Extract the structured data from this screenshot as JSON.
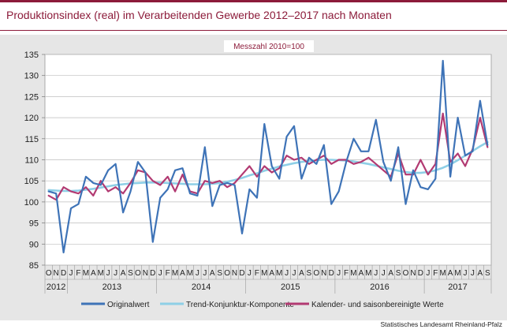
{
  "page": {
    "title": "Produktionsindex (real) im Verarbeitenden Gewerbe 2012–2017 nach Monaten",
    "source": "Statistisches Landesamt Rheinland-Pfalz"
  },
  "colors": {
    "brand": "#8c1b3a",
    "original": "#3e73b7",
    "trend": "#8ecfe6",
    "adjusted": "#b23a72",
    "panel": "#e6e6e6"
  },
  "chart_data": {
    "type": "line",
    "subtitle": "Messzahl 2010=100",
    "ylim": [
      85,
      135
    ],
    "yticks": [
      85,
      90,
      95,
      100,
      105,
      110,
      115,
      120,
      125,
      130,
      135
    ],
    "grid": true,
    "legend_position": "bottom",
    "x": [
      "2012-10",
      "2012-11",
      "2012-12",
      "2013-01",
      "2013-02",
      "2013-03",
      "2013-04",
      "2013-05",
      "2013-06",
      "2013-07",
      "2013-08",
      "2013-09",
      "2013-10",
      "2013-11",
      "2013-12",
      "2014-01",
      "2014-02",
      "2014-03",
      "2014-04",
      "2014-05",
      "2014-06",
      "2014-07",
      "2014-08",
      "2014-09",
      "2014-10",
      "2014-11",
      "2014-12",
      "2015-01",
      "2015-02",
      "2015-03",
      "2015-04",
      "2015-05",
      "2015-06",
      "2015-07",
      "2015-08",
      "2015-09",
      "2015-10",
      "2015-11",
      "2015-12",
      "2016-01",
      "2016-02",
      "2016-03",
      "2016-04",
      "2016-05",
      "2016-06",
      "2016-07",
      "2016-08",
      "2016-09",
      "2016-10",
      "2016-11",
      "2016-12",
      "2017-01",
      "2017-02",
      "2017-03",
      "2017-04",
      "2017-05",
      "2017-06",
      "2017-07",
      "2017-08",
      "2017-09"
    ],
    "month_labels": [
      "O",
      "N",
      "D",
      "J",
      "F",
      "M",
      "A",
      "M",
      "J",
      "J",
      "A",
      "S",
      "O",
      "N",
      "D",
      "J",
      "F",
      "M",
      "A",
      "M",
      "J",
      "J",
      "A",
      "S",
      "O",
      "N",
      "D",
      "J",
      "F",
      "M",
      "A",
      "M",
      "J",
      "J",
      "A",
      "S",
      "O",
      "N",
      "D",
      "J",
      "F",
      "M",
      "A",
      "M",
      "J",
      "J",
      "A",
      "S",
      "O",
      "N",
      "D",
      "J",
      "F",
      "M",
      "A",
      "M",
      "J",
      "J",
      "A",
      "S"
    ],
    "years": [
      {
        "label": "2012",
        "months": 3
      },
      {
        "label": "2013",
        "months": 12
      },
      {
        "label": "2014",
        "months": 12
      },
      {
        "label": "2015",
        "months": 12
      },
      {
        "label": "2016",
        "months": 12
      },
      {
        "label": "2017",
        "months": 9
      }
    ],
    "series": [
      {
        "name": "Originalwert",
        "color": "#3e73b7",
        "values": [
          102.5,
          102.0,
          88.0,
          98.5,
          99.5,
          106.0,
          104.5,
          104.0,
          107.5,
          109.0,
          97.5,
          102.5,
          109.5,
          107.0,
          90.5,
          101.0,
          103.0,
          107.5,
          108.0,
          102.0,
          101.5,
          113.0,
          99.0,
          104.0,
          104.5,
          104.0,
          92.5,
          103.0,
          101.0,
          118.5,
          108.5,
          105.5,
          115.5,
          118.0,
          105.5,
          110.5,
          109.0,
          113.5,
          99.5,
          102.5,
          109.5,
          115.0,
          112.0,
          112.0,
          119.5,
          109.5,
          105.0,
          113.0,
          99.5,
          107.5,
          103.5,
          103.0,
          105.5,
          133.5,
          106.0,
          120.0,
          111.0,
          112.0,
          124.0,
          113.5
        ]
      },
      {
        "name": "Trend-Konjunktur-Komponente",
        "color": "#8ecfe6",
        "values": [
          102.8,
          102.7,
          102.6,
          102.6,
          102.7,
          102.9,
          103.1,
          103.4,
          103.7,
          104.0,
          104.2,
          104.4,
          104.5,
          104.6,
          104.6,
          104.6,
          104.5,
          104.4,
          104.3,
          104.2,
          104.2,
          104.2,
          104.3,
          104.5,
          104.8,
          105.2,
          105.7,
          106.3,
          106.8,
          107.4,
          107.9,
          108.4,
          108.8,
          109.2,
          109.5,
          109.7,
          109.9,
          110.0,
          110.0,
          109.9,
          109.8,
          109.6,
          109.3,
          109.0,
          108.6,
          108.2,
          107.8,
          107.4,
          107.1,
          106.9,
          106.9,
          107.1,
          107.5,
          108.1,
          108.9,
          109.9,
          111.0,
          112.1,
          113.2,
          114.2
        ]
      },
      {
        "name": "Kalender- und saisonbereinigte Werte",
        "color": "#b23a72",
        "values": [
          101.5,
          100.5,
          103.5,
          102.5,
          102.0,
          103.5,
          101.5,
          105.0,
          102.5,
          103.5,
          102.0,
          104.5,
          107.5,
          107.0,
          105.0,
          104.0,
          106.0,
          102.5,
          106.5,
          102.5,
          102.0,
          105.0,
          104.5,
          105.0,
          103.5,
          104.5,
          106.5,
          108.5,
          106.0,
          108.5,
          107.0,
          108.0,
          111.0,
          110.0,
          110.5,
          109.0,
          110.0,
          111.0,
          109.0,
          110.0,
          110.0,
          109.0,
          109.5,
          110.5,
          109.0,
          107.5,
          106.0,
          111.5,
          106.5,
          106.5,
          110.0,
          106.5,
          109.0,
          121.0,
          109.5,
          111.5,
          108.5,
          112.5,
          120.0,
          113.0
        ]
      }
    ]
  }
}
